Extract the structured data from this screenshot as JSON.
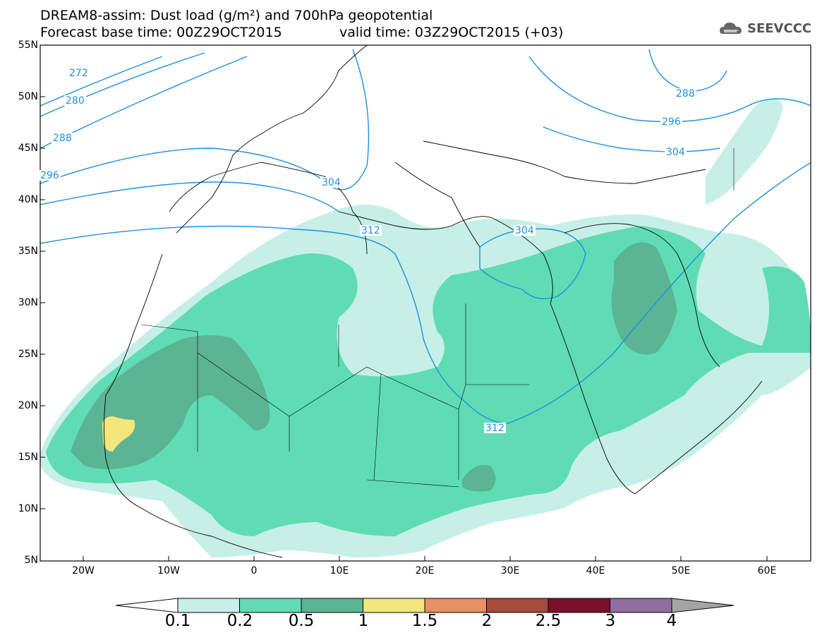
{
  "header": {
    "title_line1": "DREAM8-assim: Dust load (g/m²) and 700hPa geopotential",
    "title_line2": "Forecast base time: 00Z29OCT2015",
    "valid_time": "valid time: 03Z29OCT2015 (+03)",
    "logo_text": "SEEVCCC"
  },
  "map": {
    "lat_labels": [
      "55N",
      "50N",
      "45N",
      "40N",
      "35N",
      "30N",
      "25N",
      "20N",
      "15N",
      "10N",
      "5N"
    ],
    "lon_labels": [
      "20W",
      "10W",
      "0",
      "10E",
      "20E",
      "30E",
      "40E",
      "50E",
      "60E"
    ],
    "contour_labels": [
      "272",
      "280",
      "288",
      "296",
      "304",
      "312",
      "304",
      "288",
      "296",
      "304",
      "312"
    ],
    "contour_color": "#1e90e0",
    "shading_colors": {
      "0.1-0.2": "#c6efe7",
      "0.2-0.5": "#5fdcb4",
      "0.5-1": "#5bb492",
      "1-1.5": "#f3e67b"
    }
  },
  "colorbar": {
    "labels": [
      "0.1",
      "0.2",
      "0.5",
      "1",
      "1.5",
      "2",
      "2.5",
      "3",
      "4"
    ],
    "colors": [
      "#c6efe7",
      "#5fdcb4",
      "#5bb492",
      "#f3e67b",
      "#e88f64",
      "#a84a3e",
      "#7c0f2c",
      "#8f6ea0"
    ],
    "under_color": "#ffffff",
    "over_color": "#a4a4a4"
  }
}
